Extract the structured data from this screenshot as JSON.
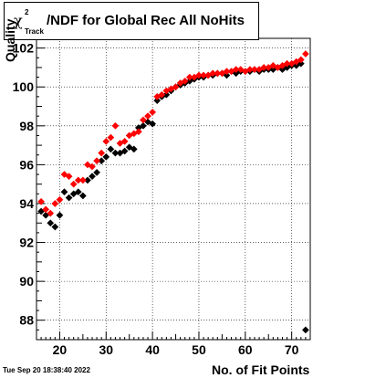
{
  "title": {
    "chi": "χ",
    "superscript": "2",
    "subscript": "Track",
    "text": "/NDF for Global Rec All NoHits"
  },
  "timestamp": "Tue Sep 20 18:38:40 2022",
  "colors": {
    "red": "#ff0000",
    "black": "#000000",
    "grid": "#000000"
  },
  "chart_data": {
    "type": "scatter",
    "title": "χ2 Track /NDF for Global Rec All NoHits",
    "xlabel": "No. of Fit Points",
    "ylabel": "Quality",
    "xlim": [
      15,
      74
    ],
    "ylim": [
      87,
      102.5
    ],
    "xticks": [
      20,
      30,
      40,
      50,
      60,
      70
    ],
    "yticks": [
      88,
      90,
      92,
      94,
      96,
      98,
      100,
      102
    ],
    "grid": true,
    "series": [
      {
        "color": "red",
        "x": [
          16,
          17,
          18,
          19,
          20,
          21,
          22,
          23,
          24,
          25,
          26,
          27,
          28,
          29,
          30,
          31,
          32,
          33,
          34,
          35,
          36,
          37,
          38,
          39,
          40,
          41,
          42,
          43,
          44,
          45,
          46,
          47,
          48,
          49,
          50,
          51,
          52,
          53,
          54,
          55,
          56,
          57,
          58,
          59,
          60,
          61,
          62,
          63,
          64,
          65,
          66,
          67,
          68,
          69,
          70,
          71,
          72,
          73
        ],
        "y": [
          94.1,
          93.7,
          93.5,
          94.0,
          94.2,
          95.5,
          95.4,
          95.0,
          95.2,
          95.2,
          96.0,
          95.9,
          96.2,
          96.6,
          97.2,
          97.4,
          98.0,
          97.1,
          97.2,
          97.5,
          97.6,
          97.7,
          98.3,
          98.5,
          98.7,
          99.5,
          99.6,
          99.8,
          99.9,
          100.0,
          100.2,
          100.3,
          100.5,
          100.5,
          100.6,
          100.6,
          100.6,
          100.7,
          100.7,
          100.7,
          100.8,
          100.8,
          100.9,
          100.9,
          100.8,
          100.9,
          100.9,
          100.9,
          101.0,
          101.0,
          101.1,
          101.0,
          101.1,
          101.2,
          101.2,
          101.3,
          101.4,
          101.7
        ]
      },
      {
        "color": "black",
        "x": [
          16,
          17,
          18,
          19,
          20,
          21,
          22,
          23,
          24,
          25,
          26,
          27,
          28,
          29,
          30,
          31,
          32,
          33,
          34,
          35,
          36,
          37,
          38,
          39,
          40,
          41,
          42,
          43,
          44,
          45,
          46,
          47,
          48,
          49,
          50,
          51,
          52,
          53,
          54,
          55,
          56,
          57,
          58,
          59,
          60,
          61,
          62,
          63,
          64,
          65,
          66,
          67,
          68,
          69,
          70,
          71,
          72,
          73
        ],
        "y": [
          93.6,
          93.4,
          93.0,
          92.8,
          93.4,
          94.6,
          94.3,
          94.5,
          94.6,
          94.4,
          95.2,
          95.4,
          95.6,
          96.2,
          96.4,
          96.8,
          96.6,
          96.6,
          96.7,
          96.9,
          96.8,
          97.9,
          98.0,
          98.2,
          98.1,
          99.3,
          99.5,
          99.6,
          99.8,
          100.0,
          100.1,
          100.2,
          100.3,
          100.4,
          100.5,
          100.5,
          100.6,
          100.6,
          100.7,
          100.7,
          100.6,
          100.8,
          100.7,
          100.8,
          100.8,
          100.8,
          100.9,
          100.8,
          100.9,
          100.9,
          100.9,
          101.0,
          100.9,
          101.0,
          101.1,
          101.1,
          101.2,
          87.5
        ]
      }
    ]
  }
}
